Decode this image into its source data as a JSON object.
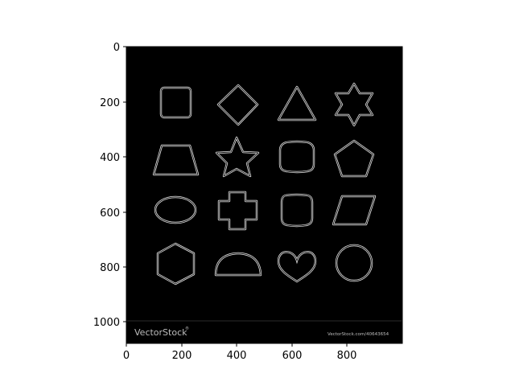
{
  "axes": {
    "x_ticks": [
      "0",
      "200",
      "400",
      "600",
      "800"
    ],
    "y_ticks": [
      "0",
      "200",
      "400",
      "600",
      "800",
      "1000"
    ]
  },
  "image": {
    "background": "#000000",
    "outline_color": "#e6e6e6",
    "shapes": [
      {
        "row": 1,
        "col": 1,
        "icon": "rounded-square-outline-icon"
      },
      {
        "row": 1,
        "col": 2,
        "icon": "diamond-outline-icon"
      },
      {
        "row": 1,
        "col": 3,
        "icon": "triangle-outline-icon"
      },
      {
        "row": 1,
        "col": 4,
        "icon": "six-point-star-outline-icon"
      },
      {
        "row": 2,
        "col": 1,
        "icon": "trapezoid-outline-icon"
      },
      {
        "row": 2,
        "col": 2,
        "icon": "five-point-star-outline-icon"
      },
      {
        "row": 2,
        "col": 3,
        "icon": "rounded-rectangle-outline-icon"
      },
      {
        "row": 2,
        "col": 4,
        "icon": "pentagon-outline-icon"
      },
      {
        "row": 3,
        "col": 1,
        "icon": "ellipse-outline-icon"
      },
      {
        "row": 3,
        "col": 2,
        "icon": "cross-outline-icon"
      },
      {
        "row": 3,
        "col": 3,
        "icon": "squircle-outline-icon"
      },
      {
        "row": 3,
        "col": 4,
        "icon": "parallelogram-outline-icon"
      },
      {
        "row": 4,
        "col": 1,
        "icon": "hexagon-outline-icon"
      },
      {
        "row": 4,
        "col": 2,
        "icon": "semicircle-outline-icon"
      },
      {
        "row": 4,
        "col": 3,
        "icon": "heart-outline-icon"
      },
      {
        "row": 4,
        "col": 4,
        "icon": "circle-outline-icon"
      }
    ],
    "watermark_logo": "VectorStock",
    "watermark_reg": "®",
    "watermark_id": "VectorStock.com/40643654"
  }
}
